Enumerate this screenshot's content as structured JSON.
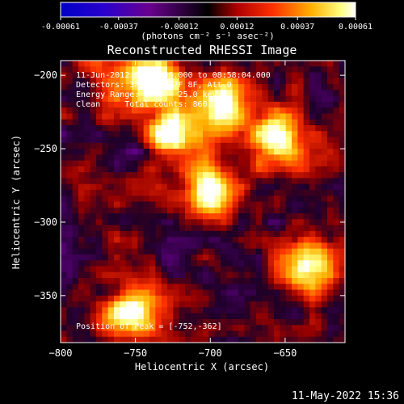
{
  "colorbar": {
    "ticks": [
      "-0.00061",
      "-0.00037",
      "-0.00012",
      "0.00012",
      "0.00037",
      "0.00061"
    ],
    "tick_values": [
      -0.00061,
      -0.00037,
      -0.00012,
      0.00012,
      0.00037,
      0.00061
    ],
    "units_label": "(photons cm⁻² s⁻¹ asec⁻²)",
    "range": [
      -0.00061,
      0.00061
    ]
  },
  "annotations": {
    "time_range": "11-Jun-2012 08:56:36.000 to 08:58:04.000",
    "detectors": "Detectors: 3F 5F 6F 7F 8F, Att 0",
    "energy_range": "Energy Range: 12.0 - 25.0 keV",
    "method_counts": "Clean     Total counts: 860.",
    "peak_position": "Position of Peak = [-752,-362]"
  },
  "footer": {
    "timestamp": "11-May-2022 15:36"
  },
  "colors": {
    "background": "#000000",
    "foreground": "#ffffff"
  },
  "chart_data": {
    "type": "heatmap",
    "title": "Reconstructed RHESSI Image",
    "xlabel": "Heliocentric X (arcsec)",
    "ylabel": "Heliocentric Y (arcsec)",
    "xlim": [
      -800,
      -610
    ],
    "ylim": [
      -382,
      -190
    ],
    "x_ticks": [
      -800,
      -750,
      -700,
      -650
    ],
    "x_tick_labels": [
      "−800",
      "−750",
      "−700",
      "−650"
    ],
    "y_ticks": [
      -200,
      -250,
      -300,
      -350
    ],
    "y_tick_labels": [
      "−200",
      "−250",
      "−300",
      "−350"
    ],
    "colormap": "blue-purple-red-yellow-white",
    "peak": [
      -752,
      -362
    ],
    "bright_sources": [
      {
        "x": -752,
        "y": -362
      },
      {
        "x": -635,
        "y": -330
      },
      {
        "x": -722,
        "y": -240
      },
      {
        "x": -655,
        "y": -245
      },
      {
        "x": -740,
        "y": -203
      },
      {
        "x": -690,
        "y": -220
      },
      {
        "x": -700,
        "y": -280
      }
    ]
  }
}
